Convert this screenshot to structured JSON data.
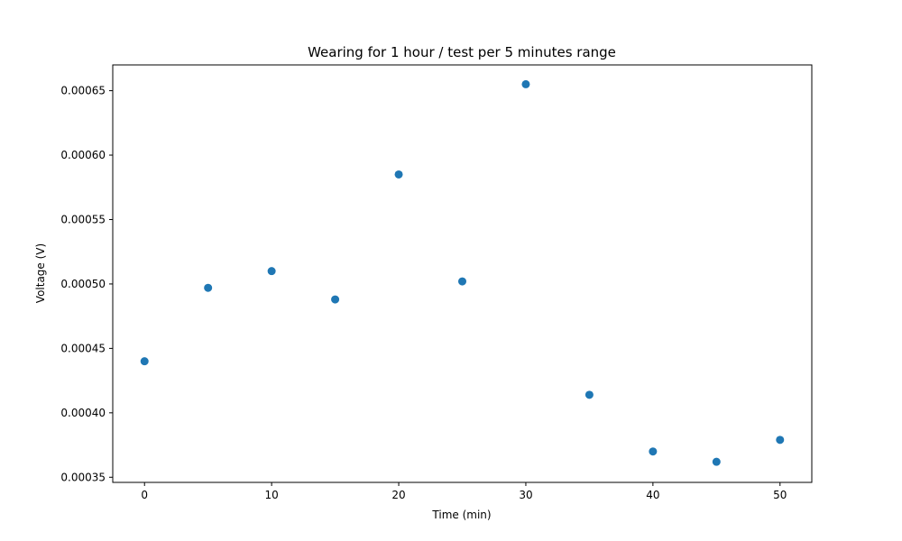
{
  "chart_data": {
    "type": "scatter",
    "title": "Wearing for 1 hour / test per 5 minutes range",
    "xlabel": "Time (min)",
    "ylabel": "Voltage (V)",
    "xlim": [
      -2.5,
      52.5
    ],
    "ylim": [
      0.000346,
      0.00067
    ],
    "xticks": [
      0,
      10,
      20,
      30,
      40,
      50
    ],
    "xtick_labels": [
      "0",
      "10",
      "20",
      "30",
      "40",
      "50"
    ],
    "yticks": [
      0.00035,
      0.0004,
      0.00045,
      0.0005,
      0.00055,
      0.0006,
      0.00065
    ],
    "ytick_labels": [
      "0.00035",
      "0.00040",
      "0.00045",
      "0.00050",
      "0.00055",
      "0.00060",
      "0.00065"
    ],
    "grid": false,
    "marker_color": "#1f77b4",
    "points": [
      {
        "x": 0,
        "y": 0.00044
      },
      {
        "x": 5,
        "y": 0.000497
      },
      {
        "x": 10,
        "y": 0.00051
      },
      {
        "x": 15,
        "y": 0.000488
      },
      {
        "x": 20,
        "y": 0.000585
      },
      {
        "x": 25,
        "y": 0.000502
      },
      {
        "x": 30,
        "y": 0.000655
      },
      {
        "x": 35,
        "y": 0.000414
      },
      {
        "x": 40,
        "y": 0.00037
      },
      {
        "x": 45,
        "y": 0.000362
      },
      {
        "x": 50,
        "y": 0.000379
      }
    ]
  }
}
